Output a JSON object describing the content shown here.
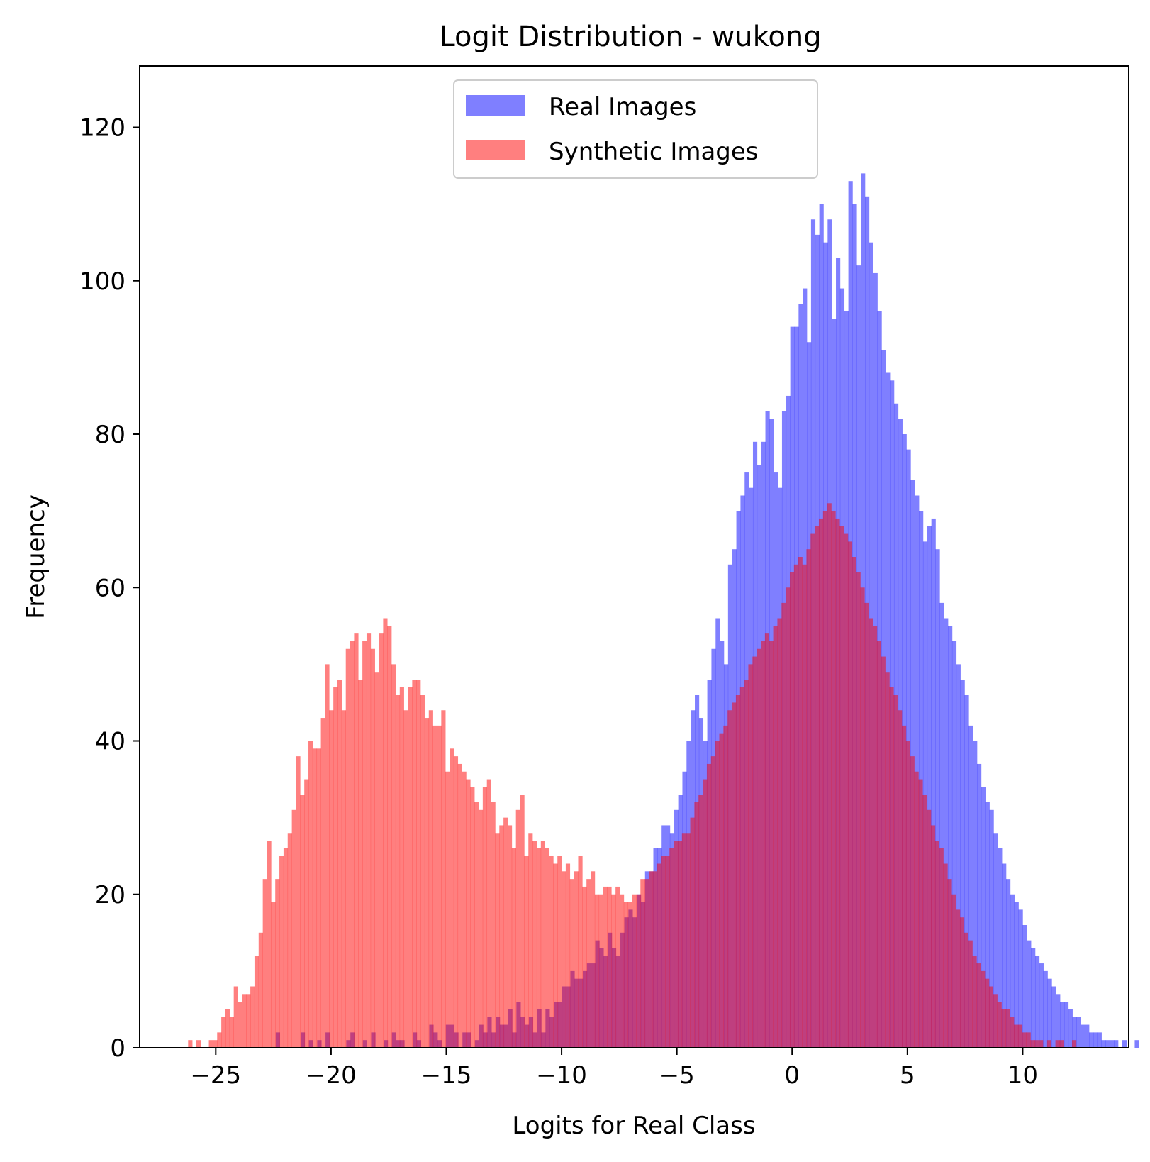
{
  "chart_data": {
    "type": "histogram",
    "title": "Logit Distribution - wukong",
    "xlabel": "Logits for Real Class",
    "ylabel": "Frequency",
    "xlim": [
      -28.3,
      14.6
    ],
    "ylim": [
      0,
      128
    ],
    "xticks": [
      -25,
      -20,
      -15,
      -10,
      -5,
      0,
      5,
      10
    ],
    "yticks": [
      0,
      20,
      40,
      60,
      80,
      100,
      120
    ],
    "xtick_labels": [
      "−25",
      "−20",
      "−15",
      "−10",
      "−5",
      "0",
      "5",
      "10"
    ],
    "ytick_labels": [
      "0",
      "20",
      "40",
      "60",
      "80",
      "100",
      "120"
    ],
    "legend": {
      "position": "upper center",
      "entries": [
        "Real Images",
        "Synthetic Images"
      ]
    },
    "colors": {
      "real": "#0000ff",
      "synthetic": "#ff0000",
      "alpha": 0.5
    },
    "series": [
      {
        "name": "Real Images",
        "color": "#0000ff",
        "bin_start": -22.4,
        "bin_width": 0.18,
        "counts": [
          2,
          0,
          0,
          0,
          0,
          0,
          2,
          0,
          1,
          0,
          1,
          0,
          2,
          0,
          0,
          0,
          0,
          1,
          2,
          0,
          0,
          1,
          0,
          2,
          0,
          0,
          1,
          0,
          2,
          1,
          1,
          0,
          0,
          2,
          1,
          0,
          0,
          3,
          2,
          1,
          0,
          3,
          3,
          2,
          0,
          2,
          2,
          0,
          1,
          3,
          2,
          4,
          2,
          4,
          3,
          3,
          5,
          2,
          6,
          4,
          3,
          4,
          2,
          5,
          2,
          5,
          4,
          6,
          6,
          8,
          8,
          10,
          9,
          9,
          10,
          11,
          11,
          14,
          13,
          12,
          15,
          13,
          12,
          15,
          17,
          18,
          17,
          20,
          19,
          23,
          23,
          26,
          26,
          29,
          29,
          28,
          31,
          33,
          36,
          40,
          44,
          46,
          43,
          40,
          48,
          52,
          56,
          53,
          50,
          63,
          65,
          70,
          72,
          75,
          73,
          79,
          76,
          79,
          83,
          82,
          75,
          73,
          83,
          85,
          94,
          94,
          97,
          99,
          92,
          108,
          106,
          110,
          105,
          108,
          95,
          103,
          99,
          96,
          113,
          110,
          102,
          114,
          111,
          105,
          101,
          96,
          91,
          88,
          87,
          84,
          82,
          80,
          78,
          74,
          72,
          70,
          66,
          68,
          69,
          65,
          58,
          56,
          55,
          53,
          50,
          48,
          46,
          42,
          40,
          37,
          34,
          32,
          31,
          28,
          26,
          24,
          22,
          20,
          19,
          18,
          16,
          14,
          13,
          12,
          11,
          10,
          9,
          8,
          7,
          6,
          6,
          5,
          4,
          4,
          3,
          3,
          2,
          2,
          2,
          1,
          1,
          1,
          1,
          0,
          1,
          0,
          0,
          1
        ]
      },
      {
        "name": "Synthetic Images",
        "color": "#ff0000",
        "bin_start": -26.2,
        "bin_width": 0.18,
        "counts": [
          1,
          0,
          1,
          0,
          0,
          1,
          1,
          2,
          4,
          5,
          4,
          8,
          6,
          7,
          7,
          8,
          12,
          15,
          22,
          27,
          19,
          22,
          25,
          26,
          28,
          31,
          38,
          33,
          35,
          40,
          39,
          39,
          43,
          50,
          44,
          47,
          48,
          44,
          52,
          53,
          54,
          48,
          53,
          54,
          52,
          49,
          54,
          56,
          55,
          50,
          46,
          47,
          44,
          47,
          48,
          48,
          46,
          43,
          44,
          42,
          42,
          44,
          36,
          39,
          38,
          37,
          36,
          35,
          34,
          32,
          31,
          34,
          35,
          32,
          28,
          29,
          30,
          29,
          26,
          31,
          33,
          25,
          28,
          27,
          26,
          27,
          26,
          25,
          24,
          25,
          23,
          24,
          22,
          23,
          25,
          21,
          22,
          23,
          20,
          20,
          21,
          21,
          20,
          21,
          20,
          19,
          19,
          20,
          20,
          22,
          22,
          23,
          23,
          24,
          25,
          25,
          26,
          27,
          27,
          28,
          28,
          30,
          32,
          33,
          35,
          37,
          38,
          40,
          41,
          42,
          44,
          45,
          46,
          47,
          48,
          50,
          51,
          52,
          53,
          54,
          53,
          55,
          56,
          58,
          60,
          62,
          63,
          64,
          63,
          65,
          67,
          68,
          69,
          70,
          71,
          70,
          69,
          68,
          67,
          66,
          64,
          62,
          60,
          58,
          56,
          55,
          53,
          51,
          49,
          47,
          46,
          44,
          42,
          40,
          38,
          36,
          35,
          33,
          31,
          29,
          27,
          26,
          24,
          22,
          20,
          18,
          17,
          15,
          14,
          12,
          11,
          10,
          9,
          8,
          7,
          6,
          5,
          5,
          4,
          3,
          3,
          2,
          2,
          1,
          1,
          1,
          0,
          1,
          0,
          1,
          1,
          0,
          0,
          1
        ]
      }
    ]
  }
}
